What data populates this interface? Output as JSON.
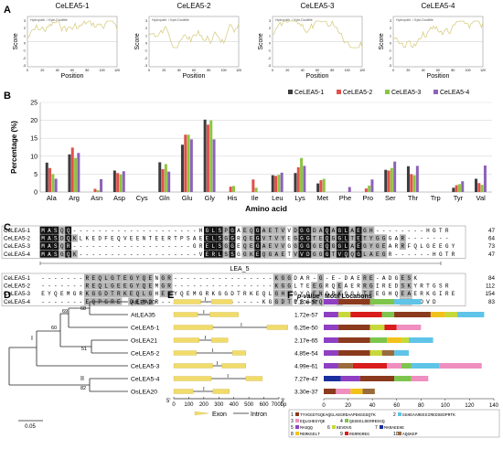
{
  "panels": {
    "A": "A",
    "B": "B",
    "C": "C",
    "D": "D",
    "E": "E",
    "F": "F"
  },
  "panel_a": {
    "charts": [
      {
        "title": "CeLEA5-1",
        "legend": "Hydropath. / Kyte-Doolittle",
        "xlabel": "Position",
        "ylabel": "Score",
        "yticks": [
          "3",
          "2",
          "1",
          "0",
          "-1",
          "-2",
          "-3"
        ]
      },
      {
        "title": "CeLEA5-2",
        "legend": "Hydropath. / Kyte-Doolittle",
        "xlabel": "Position",
        "ylabel": "Score",
        "yticks": [
          "3",
          "2",
          "1",
          "0",
          "-1",
          "-2",
          "-3"
        ]
      },
      {
        "title": "CeLEA5-3",
        "legend": "Hydropath. / Kyte-Doolittle",
        "xlabel": "Position",
        "ylabel": "Score",
        "yticks": [
          "3",
          "2",
          "1",
          "0",
          "-1",
          "-2",
          "-3"
        ]
      },
      {
        "title": "CeLEA5-4",
        "legend": "Hydropath. / Kyte-Doolittle",
        "xlabel": "Position",
        "ylabel": "Score",
        "yticks": [
          "3",
          "2",
          "1",
          "0",
          "-1",
          "-2",
          "-3"
        ]
      }
    ]
  },
  "chart_data": {
    "type": "bar",
    "title": "",
    "xlabel": "Amino acid",
    "ylabel": "Percentage (%)",
    "ylim": [
      0,
      25
    ],
    "yticks": [
      0,
      5,
      10,
      15,
      20,
      25
    ],
    "grid": true,
    "legend_position": "top-right",
    "categories": [
      "Ala",
      "Arg",
      "Asn",
      "Asp",
      "Cys",
      "Gln",
      "Glu",
      "Gly",
      "His",
      "Ile",
      "Leu",
      "Lys",
      "Met",
      "Phe",
      "Pro",
      "Ser",
      "Thr",
      "Trp",
      "Tyr",
      "Val"
    ],
    "series": [
      {
        "name": "CeLEA5-1",
        "color": "#3c3c3c",
        "values": [
          8.2,
          10.5,
          0.0,
          6.0,
          0.0,
          8.3,
          13.2,
          20.2,
          0.0,
          0.0,
          4.7,
          5.3,
          2.4,
          0.0,
          0.0,
          6.2,
          7.2,
          0.0,
          1.2,
          3.7
        ]
      },
      {
        "name": "CeLEA5-2",
        "color": "#e2504c",
        "values": [
          6.7,
          12.4,
          0.9,
          5.3,
          0.0,
          6.4,
          16.0,
          18.8,
          1.5,
          3.5,
          4.5,
          6.9,
          3.3,
          0.0,
          1.0,
          6.0,
          5.0,
          0.0,
          1.9,
          2.5
        ]
      },
      {
        "name": "CeLEA5-3",
        "color": "#8cc540",
        "values": [
          5.0,
          9.5,
          0.5,
          4.9,
          0.0,
          7.8,
          16.0,
          20.0,
          1.7,
          1.2,
          4.8,
          9.5,
          3.7,
          0.0,
          1.8,
          6.7,
          4.7,
          0.0,
          2.2,
          2.0
        ]
      },
      {
        "name": "CeLEA5-4",
        "color": "#8e62b8",
        "values": [
          3.7,
          10.9,
          3.6,
          5.8,
          0.0,
          5.7,
          14.7,
          14.7,
          0.0,
          0.0,
          5.4,
          7.3,
          0.0,
          1.4,
          3.5,
          8.5,
          7.3,
          0.0,
          3.0,
          7.4
        ]
      }
    ]
  },
  "panel_c": {
    "rows1": [
      {
        "name": "CeLEA5-1",
        "seq": "MASQQ--------------------HGLSPGAEQGAETVVDGGDAQAGLAEGH--------HGTR",
        "num": "47"
      },
      {
        "name": "CeLEA5-2",
        "seq": "MASDQKLKEDFEQVEENTEERTPSAEELSGGRQEGVTVYEGGGTEQGGLTETYGGGAR-------",
        "num": "64"
      },
      {
        "name": "CeLEA5-3",
        "seq": "MASQR-------------------GRELSGGEQEGAEVVGGGGGEQGGLAEGYGEARRFQLGEEGY",
        "num": "73"
      },
      {
        "name": "CeLEA5-4",
        "seq": "MASGQK-------------------VERLSSGGKEQGAETVVDGGGTVQQGLAEGR------HGTR",
        "num": "47"
      }
    ],
    "motif_label": "LEA_5",
    "rows2": [
      {
        "name": "CeLEA5-1",
        "seq": "-------REQLGTEGYQENGR----------------KGGDAR-G-E-DAERE-ADGESK",
        "num": "84"
      },
      {
        "name": "CeLEA5-2",
        "seq": "-------REQLGEEGYQEMGR----------------KGGLTEEGRQEAERRGIREDSKYRTGSR",
        "num": "112"
      },
      {
        "name": "CeLEA5-3",
        "seq": "EYQEMGRKGGDTRKEQLGHEGYQEMGRKGGDTRKEQLGHEGYQENGRKGGLTEEGHQEAERKGIRE",
        "num": "154"
      },
      {
        "name": "CeLEA5-4",
        "seq": "-------EQPGRE-QEMGR----------------KGGDTEEGRQEAERRGIRADGSGKTDVD",
        "num": "83"
      }
    ]
  },
  "panel_d": {
    "leaves": [
      "AtLEA20",
      "AtLEA35",
      "CeLEA5-1",
      "OsLEA21",
      "CeLEA5-2",
      "CeLEA5-3",
      "CeLEA5-4",
      "OsLEA20"
    ],
    "bootstrap": [
      "68",
      "69",
      "60",
      "51",
      "82"
    ],
    "groups": [
      "I",
      "II"
    ],
    "scale": "0.05"
  },
  "panel_e": {
    "axis_ticks": [
      "5'",
      "0",
      "100",
      "200",
      "300",
      "400",
      "500",
      "600",
      "700bp"
    ],
    "axis_end": "3'",
    "legend_exon": "Exon",
    "legend_intron": "Intron",
    "genes": [
      {
        "exons": [
          [
            0,
            180
          ],
          [
            250,
            390
          ]
        ],
        "intron_mark": 210
      },
      {
        "exons": [
          [
            0,
            160
          ],
          [
            240,
            430
          ]
        ],
        "intron_mark": 200
      },
      {
        "exons": [
          [
            0,
            260
          ],
          [
            620,
            760
          ]
        ],
        "intron_mark": 450
      },
      {
        "exons": [
          [
            0,
            170
          ],
          [
            250,
            360
          ]
        ],
        "intron_mark": 210
      },
      {
        "exons": [
          [
            0,
            150
          ],
          [
            390,
            480
          ]
        ],
        "intron_mark": 260
      },
      {
        "exons": [
          [
            0,
            260
          ],
          [
            320,
            480
          ]
        ],
        "intron_mark": 290
      },
      {
        "exons": [
          [
            0,
            250
          ],
          [
            480,
            590
          ]
        ],
        "intron_mark": 360
      },
      {
        "exons": [
          [
            0,
            130
          ],
          [
            260,
            370
          ]
        ],
        "intron_mark": 200
      }
    ]
  },
  "panel_f": {
    "header_p": "p-value",
    "header_motif": "Motif Locations",
    "pvalues": [
      "7.20e-57",
      "1.72e-57",
      "6.25e-50",
      "2.17e-65",
      "4.85e-54",
      "4.99e-61",
      "7.27e-47",
      "3.30e-37"
    ],
    "axis_ticks": [
      "0",
      "20",
      "40",
      "60",
      "80",
      "100",
      "120",
      "140"
    ],
    "motif_colors": {
      "1": "#8b3a1e",
      "2": "#5fc4e8",
      "3": "#ee8fbf",
      "4": "#7ec54d",
      "5": "#8e3fc2",
      "6": "#c7d93a",
      "7": "#1a2f9e",
      "8": "#f2c21c",
      "9": "#d91c1c",
      "10": "#9a6b3c"
    },
    "tracks": [
      [
        [
          0,
          12,
          "5"
        ],
        [
          12,
          38,
          "1"
        ],
        [
          38,
          58,
          "4"
        ],
        [
          58,
          80,
          "2"
        ]
      ],
      [
        [
          0,
          12,
          "5"
        ],
        [
          12,
          22,
          "6"
        ],
        [
          22,
          48,
          "9"
        ],
        [
          48,
          58,
          "4"
        ],
        [
          58,
          88,
          "1"
        ],
        [
          88,
          100,
          "8"
        ],
        [
          100,
          110,
          "6"
        ],
        [
          110,
          132,
          "2"
        ]
      ],
      [
        [
          0,
          12,
          "5"
        ],
        [
          12,
          38,
          "1"
        ],
        [
          38,
          50,
          "6"
        ],
        [
          50,
          60,
          "9"
        ],
        [
          60,
          80,
          "3"
        ]
      ],
      [
        [
          0,
          12,
          "5"
        ],
        [
          12,
          38,
          "1"
        ],
        [
          38,
          52,
          "4"
        ],
        [
          52,
          64,
          "8"
        ],
        [
          64,
          70,
          "6"
        ],
        [
          70,
          90,
          "2"
        ]
      ],
      [
        [
          0,
          12,
          "5"
        ],
        [
          12,
          38,
          "1"
        ],
        [
          38,
          48,
          "6"
        ],
        [
          48,
          58,
          "10"
        ],
        [
          58,
          70,
          "2"
        ]
      ],
      [
        [
          0,
          12,
          "5"
        ],
        [
          12,
          24,
          "10"
        ],
        [
          24,
          52,
          "9"
        ],
        [
          52,
          64,
          "3"
        ],
        [
          64,
          72,
          "4"
        ],
        [
          72,
          95,
          "2"
        ],
        [
          95,
          130,
          "3"
        ]
      ],
      [
        [
          0,
          14,
          "7"
        ],
        [
          14,
          30,
          "5"
        ],
        [
          30,
          58,
          "1"
        ],
        [
          58,
          72,
          "4"
        ],
        [
          72,
          86,
          "3"
        ]
      ],
      [
        [
          0,
          10,
          "1"
        ],
        [
          10,
          22,
          "3"
        ],
        [
          22,
          32,
          "8"
        ],
        [
          32,
          42,
          "10"
        ]
      ]
    ],
    "legend": [
      {
        "num": "1",
        "text": "TYVGGGTGQEAQGLAEGRDAAPEKGGGQTK"
      },
      {
        "num": "2",
        "text": "GGHEAAREEGIREDSEDPRTK"
      },
      {
        "num": "3",
        "text": "EQLGHEGYQE"
      },
      {
        "num": "4",
        "text": "QGGEELDERREEGQ"
      },
      {
        "num": "5",
        "text": "MASQQ"
      },
      {
        "num": "6",
        "text": "KEVDVG"
      },
      {
        "num": "7",
        "text": "MARAEEHE"
      },
      {
        "num": "8",
        "text": "MGRKGDLT"
      },
      {
        "num": "9",
        "text": "RGRRGREG"
      },
      {
        "num": "10",
        "text": "AQGKEP"
      }
    ]
  }
}
